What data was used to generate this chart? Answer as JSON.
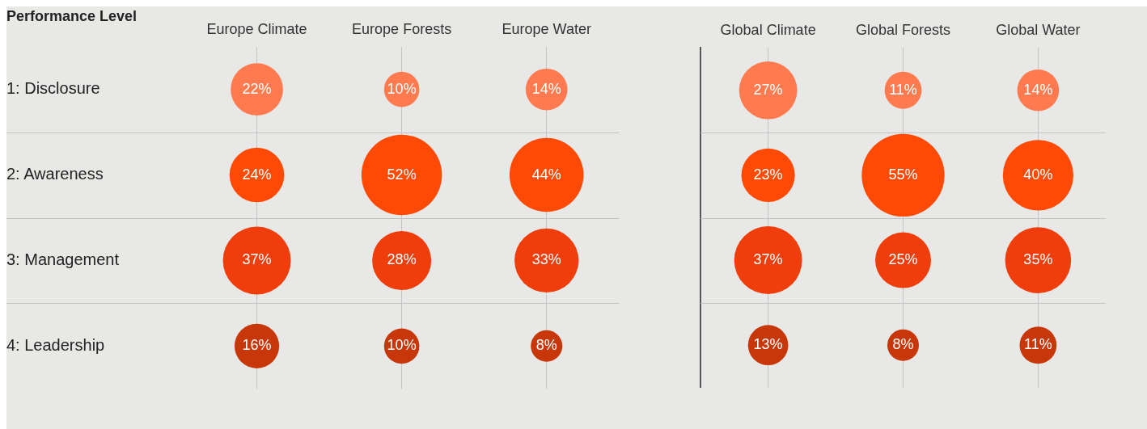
{
  "chart_data": [
    {
      "type": "bubble",
      "ylabel": "Performance Level",
      "categories": [
        "Europe Climate",
        "Europe Forests",
        "Europe Water"
      ],
      "ylim": [
        4.5,
        0.5
      ],
      "yticks": [
        {
          "value": 1,
          "label": "1: Disclosure"
        },
        {
          "value": 2,
          "label": "2: Awareness"
        },
        {
          "value": 3,
          "label": "3: Management"
        },
        {
          "value": 4,
          "label": "4: Leadership"
        }
      ],
      "grid": "x",
      "ref_lines": [
        {
          "axis": "y",
          "value": 1.5
        },
        {
          "axis": "y",
          "value": 2.5
        },
        {
          "axis": "y",
          "value": 3.5
        }
      ],
      "series": [
        {
          "color": "#ff7b4f",
          "values": [
            1,
            1,
            1
          ],
          "sizes": [
            22,
            10,
            14
          ],
          "value_labels": [
            "22%",
            "10%",
            "14%"
          ]
        },
        {
          "color": "#ff4a05",
          "values": [
            2,
            2,
            2
          ],
          "sizes": [
            24,
            52,
            44
          ],
          "value_labels": [
            "24%",
            "52%",
            "44%"
          ]
        },
        {
          "color": "#ef3e0b",
          "values": [
            3,
            3,
            3
          ],
          "sizes": [
            37,
            28,
            33
          ],
          "value_labels": [
            "37%",
            "28%",
            "33%"
          ]
        },
        {
          "color": "#c8370a",
          "values": [
            4,
            4,
            4
          ],
          "sizes": [
            16,
            10,
            8
          ],
          "value_labels": [
            "16%",
            "10%",
            "8%"
          ]
        }
      ]
    },
    {
      "type": "bubble",
      "categories": [
        "Global Climate",
        "Global Forests",
        "Global Water"
      ],
      "ylim": [
        4.5,
        0.5
      ],
      "yticks": [
        {
          "value": 1,
          "label": null
        },
        {
          "value": 2,
          "label": null
        },
        {
          "value": 3,
          "label": null
        },
        {
          "value": 4,
          "label": null
        }
      ],
      "grid": "x",
      "tick_labels": "x",
      "ref_lines": [
        {
          "axis": "y",
          "value": 1.5
        },
        {
          "axis": "y",
          "value": 2.5
        },
        {
          "axis": "y",
          "value": 3.5
        }
      ],
      "series": [
        {
          "color": "#ff7b4f",
          "values": [
            1,
            1,
            1
          ],
          "sizes": [
            27,
            11,
            14
          ],
          "value_labels": [
            "27%",
            "11%",
            "14%"
          ]
        },
        {
          "color": "#ff4a05",
          "values": [
            2,
            2,
            2
          ],
          "sizes": [
            23,
            55,
            40
          ],
          "value_labels": [
            "23%",
            "55%",
            "40%"
          ]
        },
        {
          "color": "#ef3e0b",
          "values": [
            3,
            3,
            3
          ],
          "sizes": [
            37,
            25,
            35
          ],
          "value_labels": [
            "37%",
            "25%",
            "35%"
          ]
        },
        {
          "color": "#c8370a",
          "values": [
            4,
            4,
            4
          ],
          "sizes": [
            13,
            8,
            11
          ],
          "value_labels": [
            "13%",
            "8%",
            "11%"
          ]
        }
      ]
    }
  ]
}
